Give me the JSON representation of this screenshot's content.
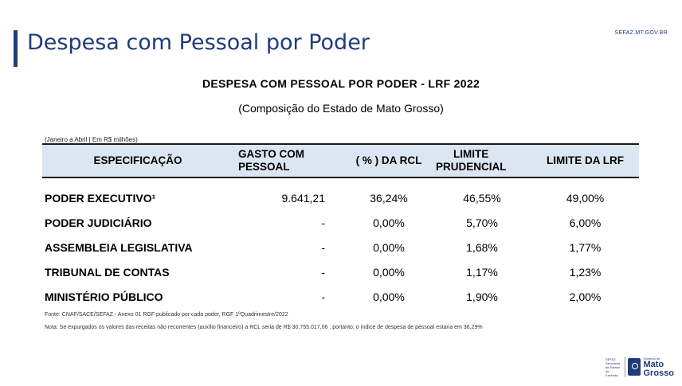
{
  "slide": {
    "title": "Despesa com Pessoal por Poder",
    "site": "SEFAZ.MT.GOV.BR"
  },
  "report": {
    "title": "DESPESA COM PESSOAL POR PODER - LRF 2022",
    "subtitle": "(Composição do Estado de Mato Grosso)",
    "period": "(Janeiro a Abril | Em R$ milhões)"
  },
  "table": {
    "headers": {
      "spec": "ESPECIFICAÇÃO",
      "gasto_line1": "GASTO COM",
      "gasto_line2": "PESSOAL",
      "rcl": "( % ) DA RCL",
      "prud_line1": "LIMITE",
      "prud_line2": "PRUDENCIAL",
      "lrf": "LIMITE DA LRF"
    },
    "rows": [
      {
        "name": "PODER EXECUTIVO¹",
        "gasto": "9.641,21",
        "rcl": "36,24%",
        "prudencial": "46,55%",
        "lrf": "49,00%"
      },
      {
        "name": "PODER JUDICIÁRIO",
        "gasto": "-",
        "rcl": "0,00%",
        "prudencial": "5,70%",
        "lrf": "6,00%"
      },
      {
        "name": "ASSEMBLEIA LEGISLATIVA",
        "gasto": "-",
        "rcl": "0,00%",
        "prudencial": "1,68%",
        "lrf": "1,77%"
      },
      {
        "name": "TRIBUNAL DE CONTAS",
        "gasto": "-",
        "rcl": "0,00%",
        "prudencial": "1,17%",
        "lrf": "1,23%"
      },
      {
        "name": "MINISTÉRIO PÚBLICO",
        "gasto": "-",
        "rcl": "0,00%",
        "prudencial": "1,90%",
        "lrf": "2,00%"
      }
    ]
  },
  "notes": {
    "source": "Fonte: CNAF/SACE/SEFAZ - Anexo 01 RGF publicado por cada poder, RGF 1ºQuadrimestre/2022",
    "footnote": "Nota: Se expurgados os valores das receitas não recorrentes (auxílio financeiro) a RCL seria de R$ 30.755.017,06 , portanto, o índice de despesa de pessoal estaria em 36,29%"
  },
  "logo": {
    "small_text": "SEFAZ Secretaria de Estado de Fazenda",
    "top_text": "Governo de",
    "line1": "Mato",
    "line2": "Grosso"
  },
  "colors": {
    "brand": "#1f3c7a",
    "header_bg": "#dce6f2"
  }
}
